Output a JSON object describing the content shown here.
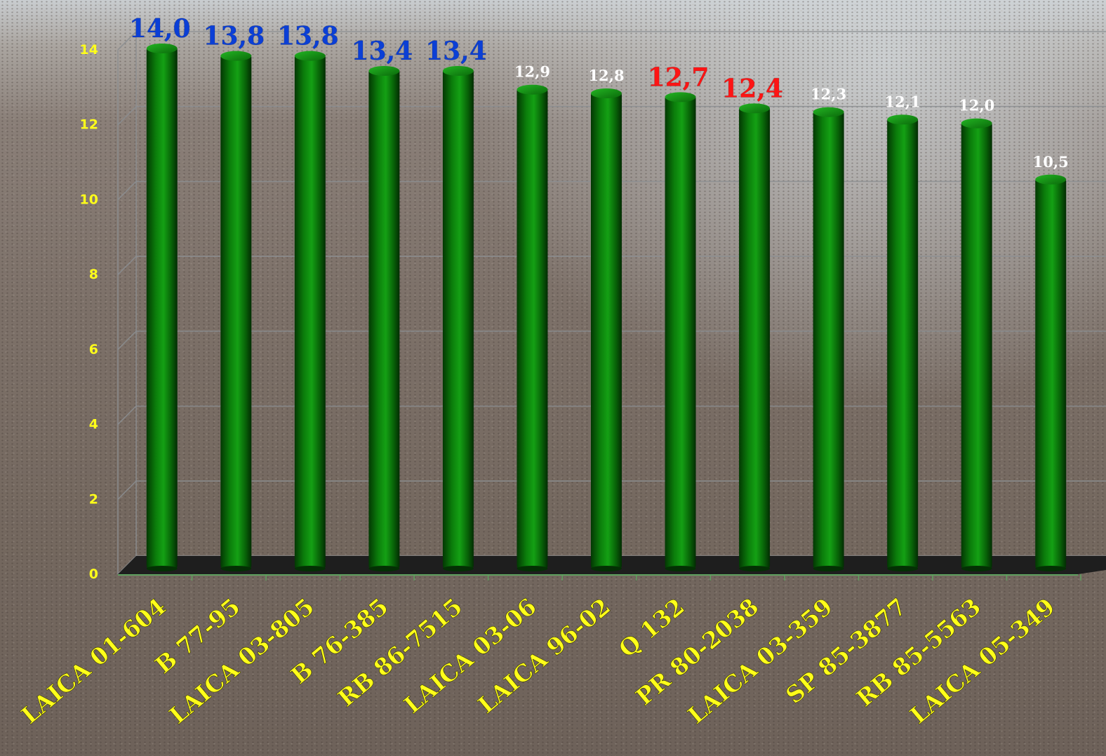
{
  "chart_data": {
    "type": "bar",
    "categories": [
      "LAICA 01-604",
      "B 77-95",
      "LAICA 03-805",
      "B 76-385",
      "RB 86-7515",
      "LAICA 03-06",
      "LAICA 96-02",
      "Q 132",
      "PR 80-2038",
      "LAICA 03-359",
      "SP 85-3877",
      "RB 85-5563",
      "LAICA 05-349"
    ],
    "values": [
      14.0,
      13.8,
      13.8,
      13.4,
      13.4,
      12.9,
      12.8,
      12.7,
      12.4,
      12.3,
      12.1,
      12.0,
      10.5
    ],
    "value_labels": [
      "14,0",
      "13,8",
      "13,8",
      "13,4",
      "13,4",
      "12,9",
      "12,8",
      "12,7",
      "12,4",
      "12,3",
      "12,1",
      "12,0",
      "10,5"
    ],
    "label_styles": [
      "blue",
      "blue",
      "blue",
      "blue",
      "blue",
      "white",
      "white",
      "red",
      "red",
      "white",
      "white",
      "white",
      "white"
    ],
    "yticks": [
      "0",
      "2",
      "4",
      "6",
      "8",
      "10",
      "12",
      "14"
    ],
    "ylim": [
      0,
      14
    ],
    "grid": true,
    "colors": {
      "bar": "#0a7a0a",
      "bar_dark": "#043d04",
      "floor": "#1e1e1e",
      "tick_label": "#ffff1a",
      "label_blue": "#0b3fd6",
      "label_red": "#ff1414",
      "label_white": "#ffffff",
      "grid": "#8c8f92"
    }
  }
}
